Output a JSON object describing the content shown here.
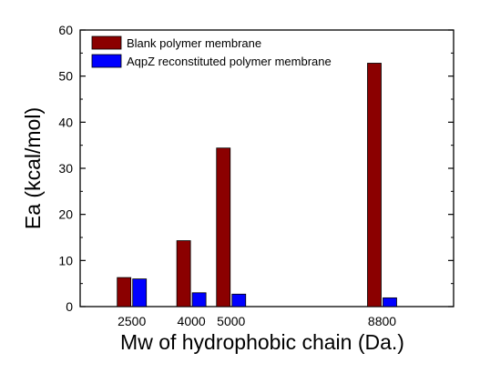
{
  "chart_data": {
    "type": "bar",
    "xlabel": "Mw of hydrophobic chain (Da.)",
    "ylabel": "Ea (kcal/mol)",
    "ylim": [
      0,
      60
    ],
    "yticks": [
      "0",
      "10",
      "20",
      "30",
      "40",
      "50",
      "60"
    ],
    "x_numeric_range": [
      1200,
      10600
    ],
    "x": [
      2500,
      4000,
      5000,
      8800
    ],
    "x_tick_labels": [
      "2500",
      "4000",
      "5000",
      "8800"
    ],
    "series": [
      {
        "name": "Blank polymer membrane",
        "color": "#8b0000",
        "values": [
          6.3,
          14.3,
          34.4,
          52.8
        ]
      },
      {
        "name": "AqpZ reconstituted polymer membrane",
        "color": "#0000ff",
        "values": [
          6.0,
          3.0,
          2.7,
          1.9
        ]
      }
    ],
    "legend_position": "top-left",
    "grid": false
  }
}
